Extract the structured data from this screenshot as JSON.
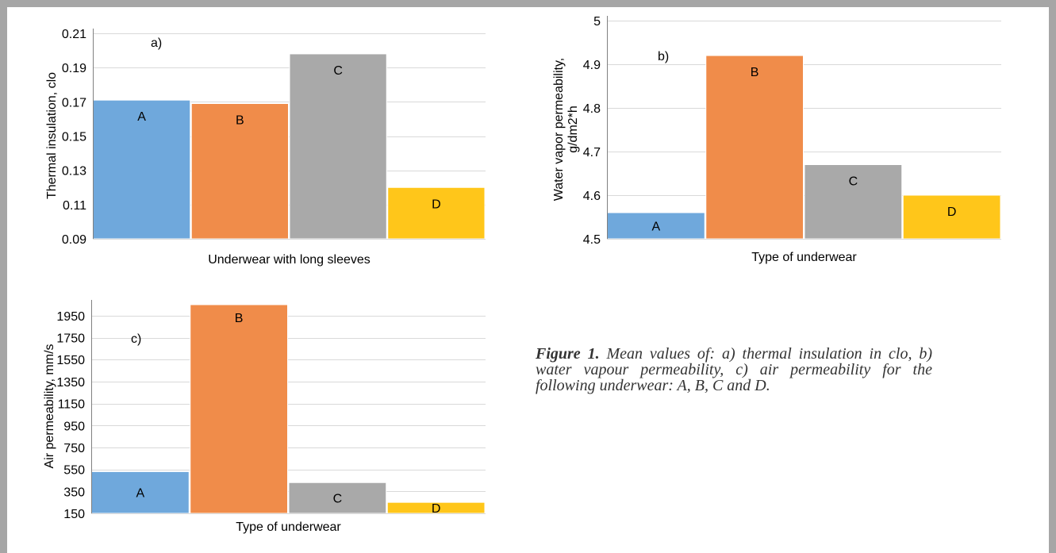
{
  "colors": {
    "A": "#6fa8dc",
    "B": "#f08c4a",
    "C": "#a9a9a9",
    "D": "#ffc61a",
    "grid": "#d9d9d9",
    "axis": "#808080",
    "frame": "#a6a6a6"
  },
  "caption": {
    "bold": "Figure 1.",
    "text": " Mean values of: a) thermal insulation in clo, b) water vapour permeability, c) air permeability for the following underwear: A, B, C and D."
  },
  "chart_data": [
    {
      "type": "bar",
      "panel_label": "a)",
      "categories": [
        "A",
        "B",
        "C",
        "D"
      ],
      "values": [
        0.171,
        0.169,
        0.198,
        0.12
      ],
      "ylabel": "Thermal insulation, clo",
      "xlabel": "Underwear with long sleeves",
      "ylim": [
        0.09,
        0.21
      ],
      "yticks": [
        "0.09",
        "0.11",
        "0.13",
        "0.15",
        "0.17",
        "0.19",
        "0.21"
      ],
      "grid": true
    },
    {
      "type": "bar",
      "panel_label": "b)",
      "categories": [
        "A",
        "B",
        "C",
        "D"
      ],
      "values": [
        4.56,
        4.92,
        4.67,
        4.6
      ],
      "ylabel": [
        "Water vapor permeability,",
        "g/dm2*h"
      ],
      "xlabel": "Type of underwear",
      "ylim": [
        4.5,
        5.0
      ],
      "yticks": [
        "4.5",
        "4.6",
        "4.7",
        "4.8",
        "4.9",
        "5"
      ],
      "grid": true
    },
    {
      "type": "bar",
      "panel_label": "c)",
      "categories": [
        "A",
        "B",
        "C",
        "D"
      ],
      "values": [
        530,
        2050,
        430,
        250
      ],
      "ylabel": "Air permeability, mm/s",
      "xlabel": "Type of underwear",
      "ylim": [
        150,
        2050
      ],
      "yticks": [
        "150",
        "350",
        "550",
        "750",
        "950",
        "1150",
        "1350",
        "1550",
        "1750",
        "1950"
      ],
      "grid": true
    }
  ]
}
